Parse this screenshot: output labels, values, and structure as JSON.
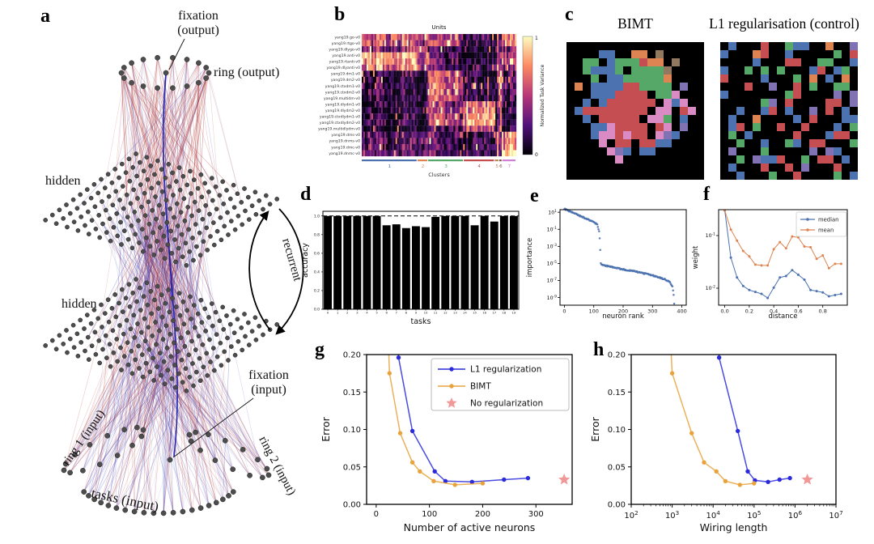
{
  "letters": {
    "a": "a",
    "b": "b",
    "c": "c",
    "d": "d",
    "e": "e",
    "f": "f",
    "g": "g",
    "h": "h"
  },
  "pixel_palette": {
    "b": "#4C72B0",
    "g": "#55A868",
    "r": "#C44E52",
    "o": "#DD8452",
    "p": "#DA8BC3",
    "u": "#8172B3",
    "w": "#937860",
    "k": "#000000"
  },
  "network": {
    "labels": {
      "fixation_output_line1": "fixation",
      "fixation_output_line2": "(output)",
      "ring_output": "ring (output)",
      "hidden1": "hidden",
      "hidden2": "hidden",
      "recurrent": "recurrent",
      "fixation_input_line1": "fixation",
      "fixation_input_line2": "(input)",
      "ring1_input": "ring 1 (input)",
      "ring2_input": "ring 2 (input)",
      "tasks_input": "tasks (input)"
    },
    "colors": {
      "excitatory": "#b03535",
      "inhibitory": "#3b3bb8",
      "node": "#4d4d4d",
      "highlight": "#1a1aae"
    },
    "layers": {
      "output_ring_nodes": 18,
      "hidden_rows": 14,
      "hidden_cols": 14,
      "input_ring_nodes": 14,
      "task_nodes": 20
    }
  },
  "chart_data": [
    {
      "id": "b",
      "type": "heatmap",
      "title": "Units",
      "xlabel": "Clusters",
      "colorbar_label": "Normalized Task Variance",
      "colorbar_ticks": [
        "1",
        "0"
      ],
      "row_labels": [
        "yang19.go-v0",
        "yang19.rtgo-v0",
        "yang19.dlygo-v0",
        "yang19.anti-v0",
        "yang19.rtanti-v0",
        "yang19.dlyanti-v0",
        "yang19.dm1-v0",
        "yang19.dm2-v0",
        "yang19.ctxdm1-v0",
        "yang19.ctxdm2-v0",
        "yang19.multidm-v0",
        "yang19.dlydm1-v0",
        "yang19.dlydm2-v0",
        "yang19.ctxdlydm1-v0",
        "yang19.ctxdlydm2-v0",
        "yang19.multidlydm-v0",
        "yang19.dms-v0",
        "yang19.dnms-v0",
        "yang19.dmc-v0",
        "yang19.dnmc-v0"
      ],
      "cluster_labels": [
        "1",
        "2",
        "3",
        "4",
        "5",
        "6",
        "7"
      ],
      "cluster_fracs": [
        0.36,
        0.07,
        0.23,
        0.2,
        0.03,
        0.02,
        0.09
      ],
      "cluster_colors": [
        "#4C72B0",
        "#DD8452",
        "#55A868",
        "#C44E52",
        "#bc8b60",
        "#8a5a44",
        "#cf7fd4"
      ],
      "value_range": [
        0,
        1
      ],
      "profiles": [
        [
          0.6,
          0.55,
          0.5,
          0.1,
          0.3,
          0.25,
          0.65
        ],
        [
          0.55,
          0.5,
          0.5,
          0.12,
          0.3,
          0.3,
          0.65
        ],
        [
          0.45,
          0.65,
          0.22,
          0.08,
          0.55,
          0.2,
          0.35
        ],
        [
          0.85,
          0.4,
          0.18,
          0.06,
          0.3,
          0.3,
          0.45
        ],
        [
          0.75,
          0.4,
          0.3,
          0.12,
          0.4,
          0.3,
          0.45
        ],
        [
          0.7,
          0.5,
          0.22,
          0.15,
          0.55,
          0.3,
          0.38
        ],
        [
          0.13,
          0.06,
          0.62,
          0.1,
          0.1,
          0.7,
          0.15
        ],
        [
          0.13,
          0.06,
          0.6,
          0.1,
          0.1,
          0.7,
          0.15
        ],
        [
          0.15,
          0.06,
          0.62,
          0.13,
          0.1,
          0.62,
          0.2
        ],
        [
          0.15,
          0.06,
          0.6,
          0.13,
          0.12,
          0.62,
          0.2
        ],
        [
          0.13,
          0.06,
          0.6,
          0.13,
          0.1,
          0.6,
          0.16
        ],
        [
          0.1,
          0.05,
          0.45,
          0.7,
          0.1,
          0.52,
          0.13
        ],
        [
          0.1,
          0.05,
          0.45,
          0.7,
          0.12,
          0.52,
          0.13
        ],
        [
          0.1,
          0.05,
          0.5,
          0.8,
          0.1,
          0.48,
          0.13
        ],
        [
          0.1,
          0.05,
          0.5,
          0.8,
          0.1,
          0.45,
          0.13
        ],
        [
          0.08,
          0.05,
          0.26,
          0.52,
          0.1,
          0.35,
          0.12
        ],
        [
          0.3,
          0.3,
          0.2,
          0.13,
          0.55,
          0.3,
          0.75
        ],
        [
          0.26,
          0.35,
          0.25,
          0.13,
          0.48,
          0.3,
          0.7
        ],
        [
          0.26,
          0.25,
          0.2,
          0.16,
          0.52,
          0.3,
          0.75
        ],
        [
          0.26,
          0.3,
          0.2,
          0.16,
          0.48,
          0.3,
          0.8
        ]
      ]
    },
    {
      "id": "c_bimt",
      "type": "heatmap",
      "title": "BIMT",
      "grid": [
        ".................",
        "....bb..oo.w.....",
        "..gg.bgggroo.w...",
        "..gbbbg.ggggw....",
        "...g.bbgggggo....",
        ".o.bbbbrrgggg.u..",
        "...bbbrrrr.ggp...",
        "..b.brrrrrr.pbp..",
        ".brrrrrrrr.pp.rp.",
        "..b.rrrrr.ppg.b..",
        "...bbprrrr.rp.u..",
        "...bpprprr.pub...",
        "....p.rr.rrbb....",
        ".....pub.bb......",
        "......p..........",
        ".................",
        "................."
      ]
    },
    {
      "id": "c_l1",
      "type": "heatmap",
      "title": "L1 regularisation (control)",
      "grid": [
        ".b...r..gbb..o..u",
        "b...or..b.....g.r",
        "....b...rr..gg..b",
        "b..g.g.g...br.bg.",
        "r....b...g.o.b.o.",
        "...r..u..r.g..gg.",
        "b.......gr....u.u",
        ".....gu.r....rr.u",
        "..b..br.b..u.r.b.",
        ".b..o....b.r...bb",
        ".br.g..r..r...b.g",
        ".g.b.....r...brr.",
        "..g..b..gb.rr...g",
        ".u...g.....u.ub..",
        "..g.ubbr..g.rr.b.",
        ".b...r..r.u...r..",
        "..b...g..r....g.b"
      ]
    },
    {
      "id": "d",
      "type": "bar",
      "ylabel": "accuracy",
      "xlabel": "tasks",
      "categories": [
        "0",
        "1",
        "2",
        "3",
        "4",
        "5",
        "6",
        "7",
        "8",
        "9",
        "10",
        "11",
        "12",
        "13",
        "14",
        "15",
        "16",
        "17",
        "18",
        "19"
      ],
      "values": [
        1.0,
        1.0,
        1.0,
        1.0,
        1.0,
        1.0,
        0.9,
        0.91,
        0.87,
        0.89,
        0.88,
        0.99,
        1.0,
        1.0,
        1.0,
        0.9,
        1.0,
        0.94,
        1.0,
        1.0
      ],
      "yticks": [
        0.0,
        0.2,
        0.4,
        0.6,
        0.8,
        1.0
      ],
      "ylim": [
        0,
        1.05
      ],
      "dashed_line": 1.0,
      "bar_color": "#000000"
    },
    {
      "id": "e",
      "type": "scatter",
      "xlabel": "neuron rank",
      "ylabel": "importance",
      "xticks": [
        0,
        100,
        200,
        300,
        400
      ],
      "ytick_exponents": [
        1,
        -1,
        -3,
        -5,
        -7,
        -9
      ],
      "color": "#4C72B0",
      "curve_anchors": [
        [
          0,
          25
        ],
        [
          20,
          12
        ],
        [
          60,
          3
        ],
        [
          100,
          0.7
        ],
        [
          112,
          0.35
        ],
        [
          118,
          0.05
        ],
        [
          121,
          0.003
        ],
        [
          124,
          1e-05
        ],
        [
          130,
          6e-06
        ],
        [
          160,
          4e-06
        ],
        [
          200,
          2e-06
        ],
        [
          250,
          1e-06
        ],
        [
          300,
          4e-07
        ],
        [
          340,
          1.5e-07
        ],
        [
          360,
          6e-08
        ],
        [
          368,
          2e-08
        ],
        [
          372,
          2e-09
        ],
        [
          374,
          2e-10
        ]
      ]
    },
    {
      "id": "f",
      "type": "line",
      "xlabel": "distance",
      "ylabel": "weight",
      "xticks": [
        0.0,
        0.2,
        0.4,
        0.6,
        0.8
      ],
      "ytick_exponents": [
        -1,
        -2
      ],
      "x": [
        0.0,
        0.05,
        0.1,
        0.15,
        0.2,
        0.25,
        0.3,
        0.35,
        0.4,
        0.45,
        0.5,
        0.55,
        0.6,
        0.65,
        0.7,
        0.75,
        0.8,
        0.85,
        0.9,
        0.95
      ],
      "series": [
        {
          "name": "median",
          "color": "#4C72B0",
          "values": [
            0.3,
            0.038,
            0.016,
            0.011,
            0.0092,
            0.0085,
            0.0078,
            0.0065,
            0.0102,
            0.016,
            0.017,
            0.022,
            0.018,
            0.0145,
            0.0092,
            0.0088,
            0.0083,
            0.007,
            0.0074,
            0.0078
          ]
        },
        {
          "name": "mean",
          "color": "#DD8452",
          "values": [
            0.3,
            0.13,
            0.08,
            0.051,
            0.04,
            0.028,
            0.027,
            0.027,
            0.055,
            0.075,
            0.057,
            0.096,
            0.092,
            0.062,
            0.06,
            0.036,
            0.042,
            0.024,
            0.029,
            0.029
          ]
        }
      ],
      "legend_position": "upper right"
    },
    {
      "id": "g",
      "type": "line",
      "xlabel": "Number of active neurons",
      "ylabel": "Error",
      "xticks": [
        0,
        100,
        200,
        300
      ],
      "yticks": [
        0.0,
        0.05,
        0.1,
        0.15,
        0.2
      ],
      "xlim": [
        -18,
        368
      ],
      "ylim": [
        0,
        0.2
      ],
      "series": [
        {
          "name": "L1 regularization",
          "color": "#2b2bdb",
          "lead_in": [
            36,
            0.27
          ],
          "x": [
            42,
            68,
            110,
            130,
            180,
            240,
            285
          ],
          "y": [
            0.196,
            0.098,
            0.044,
            0.031,
            0.03,
            0.033,
            0.035
          ]
        },
        {
          "name": "BIMT",
          "color": "#e8a33d",
          "lead_in": [
            20,
            0.27
          ],
          "x": [
            25,
            45,
            68,
            82,
            108,
            148,
            200
          ],
          "y": [
            0.175,
            0.095,
            0.056,
            0.044,
            0.031,
            0.026,
            0.028
          ]
        }
      ],
      "star": {
        "label": "No regularization",
        "color": "#ee8787",
        "x": 353,
        "y": 0.033
      },
      "legend": true
    },
    {
      "id": "h",
      "type": "line",
      "xlabel": "Wiring length",
      "ylabel": "Error",
      "xtick_exponents": [
        2,
        3,
        4,
        5,
        6,
        7
      ],
      "yticks": [
        0.0,
        0.05,
        0.1,
        0.15,
        0.2
      ],
      "xlim_exponents": [
        2,
        7
      ],
      "ylim": [
        0,
        0.2
      ],
      "series": [
        {
          "name": "L1 regularization",
          "color": "#2b2bdb",
          "lead_in": [
            12800,
            0.27
          ],
          "x": [
            14000,
            40000,
            70000,
            105000,
            220000,
            420000,
            750000
          ],
          "y": [
            0.196,
            0.098,
            0.044,
            0.032,
            0.03,
            0.033,
            0.035
          ]
        },
        {
          "name": "BIMT",
          "color": "#e8a33d",
          "lead_in": [
            820,
            0.27
          ],
          "x": [
            1000,
            3000,
            6000,
            12000,
            20000,
            45000,
            100000
          ],
          "y": [
            0.175,
            0.095,
            0.056,
            0.044,
            0.031,
            0.026,
            0.028
          ]
        }
      ],
      "star": {
        "label": "No regularization",
        "color": "#ee8787",
        "x": 2000000,
        "y": 0.033
      },
      "legend": false
    }
  ]
}
